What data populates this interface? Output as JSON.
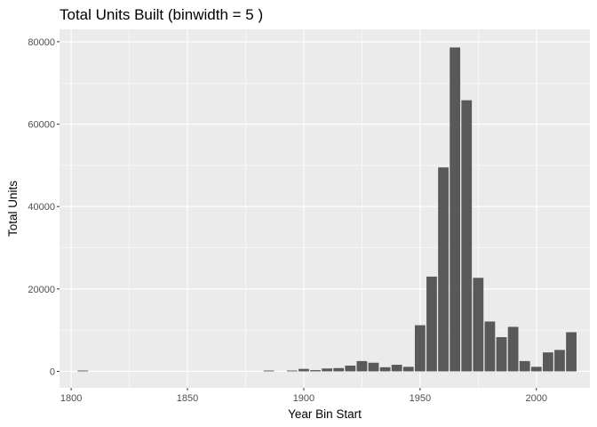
{
  "chart_data": {
    "type": "bar",
    "title": "Total Units Built (binwidth = 5 )",
    "xlabel": "Year Bin Start",
    "ylabel": "Total Units",
    "bin_width": 5,
    "xlim": [
      1795,
      2023
    ],
    "ylim": [
      -4000,
      83000
    ],
    "x_ticks": [
      1800,
      1850,
      1900,
      1950,
      2000
    ],
    "y_ticks": [
      0,
      20000,
      40000,
      60000,
      80000
    ],
    "x_tick_labels": [
      "1800",
      "1850",
      "1900",
      "1950",
      "2000"
    ],
    "y_tick_labels": [
      "0",
      "20000",
      "40000",
      "60000",
      "80000"
    ],
    "grid": true,
    "legend": "none",
    "colors": {
      "panel": "#ebebeb",
      "grid": "#ffffff",
      "bar": "#595959",
      "tick_text": "#4d4d4d"
    },
    "bins": [
      1805,
      1885,
      1895,
      1900,
      1905,
      1910,
      1915,
      1920,
      1925,
      1930,
      1935,
      1940,
      1945,
      1950,
      1955,
      1960,
      1965,
      1970,
      1975,
      1980,
      1985,
      1990,
      1995,
      2000,
      2005,
      2010,
      2015
    ],
    "values": [
      200,
      200,
      200,
      600,
      300,
      700,
      800,
      1400,
      2500,
      2100,
      1000,
      1600,
      1100,
      11200,
      23000,
      49500,
      78600,
      65800,
      22700,
      12100,
      8300,
      10800,
      2500,
      1100,
      4600,
      5200,
      9500
    ]
  }
}
